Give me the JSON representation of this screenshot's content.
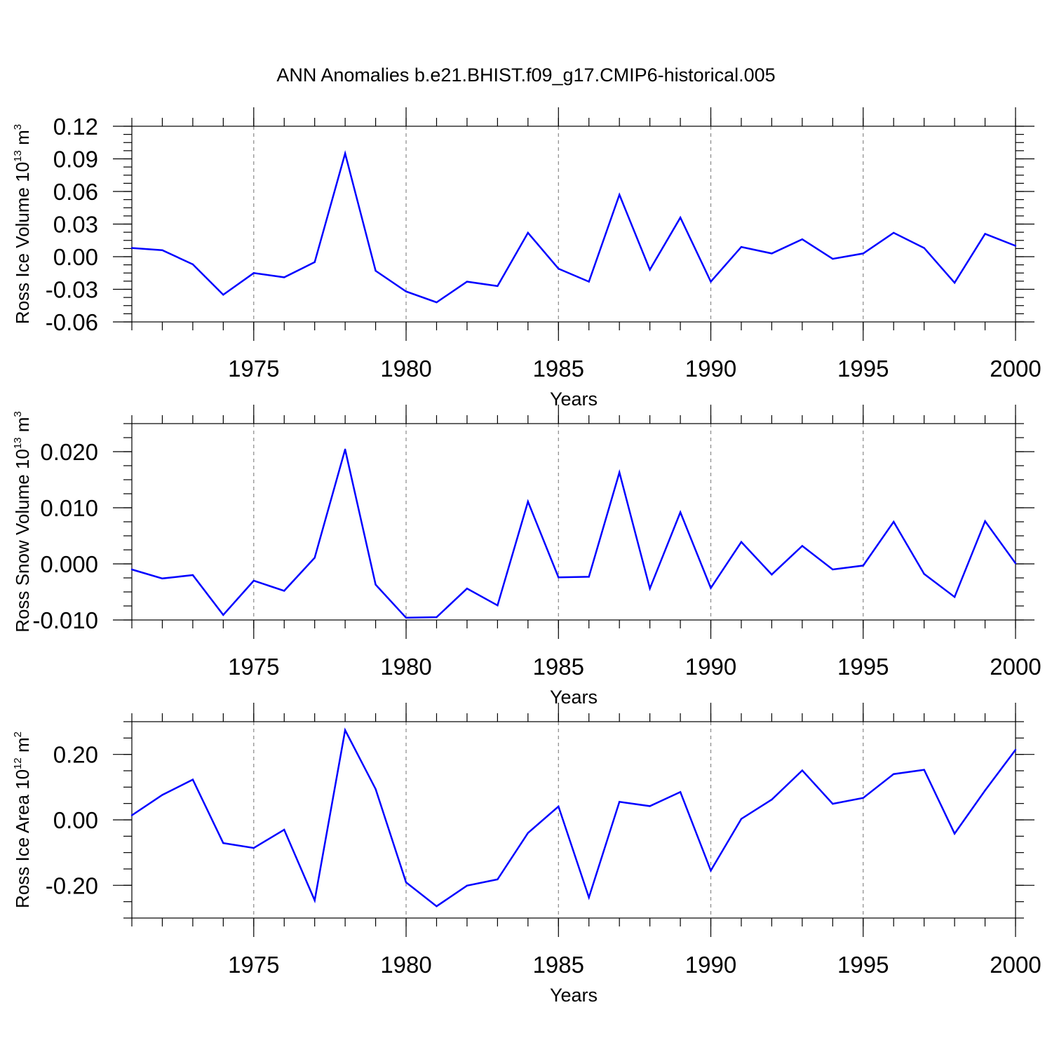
{
  "title": "ANN Anomalies b.e21.BHIST.f09_g17.CMIP6-historical.005",
  "colors": {
    "line": "#0000ff",
    "grid": "#888888",
    "axis": "#000000"
  },
  "chart_data": [
    {
      "type": "line",
      "name": "ross-ice-volume",
      "ylabel_parts": [
        "Ross Ice Volume 10",
        "13",
        " m",
        "3"
      ],
      "xlabel": "Years",
      "xlim": [
        1971,
        2000
      ],
      "ylim": [
        -0.06,
        0.12
      ],
      "yticks": [
        -0.06,
        -0.03,
        0.0,
        0.03,
        0.06,
        0.09,
        0.12
      ],
      "ytick_labels": [
        "-0.06",
        "-0.03",
        "0.00",
        "0.03",
        "0.06",
        "0.09",
        "0.12"
      ],
      "xticks": [
        1975,
        1980,
        1985,
        1990,
        1995,
        2000
      ],
      "xtick_labels": [
        "1975",
        "1980",
        "1985",
        "1990",
        "1995",
        "2000"
      ],
      "x": [
        1971,
        1972,
        1973,
        1974,
        1975,
        1976,
        1977,
        1978,
        1979,
        1980,
        1981,
        1982,
        1983,
        1984,
        1985,
        1986,
        1987,
        1988,
        1989,
        1990,
        1991,
        1992,
        1993,
        1994,
        1995,
        1996,
        1997,
        1998,
        1999,
        2000
      ],
      "values": [
        0.008,
        0.006,
        -0.007,
        -0.035,
        -0.015,
        -0.019,
        -0.005,
        0.095,
        -0.013,
        -0.032,
        -0.042,
        -0.023,
        -0.027,
        0.022,
        -0.011,
        -0.023,
        0.057,
        -0.012,
        0.036,
        -0.023,
        0.009,
        0.003,
        0.016,
        -0.002,
        0.003,
        0.022,
        0.008,
        -0.024,
        0.021,
        0.01
      ]
    },
    {
      "type": "line",
      "name": "ross-snow-volume",
      "ylabel_parts": [
        "Ross Snow Volume 10",
        "13",
        " m",
        "3"
      ],
      "xlabel": "Years",
      "xlim": [
        1971,
        2000
      ],
      "ylim": [
        -0.01,
        0.025
      ],
      "yticks": [
        -0.01,
        0.0,
        0.01,
        0.02
      ],
      "ytick_labels": [
        "-0.010",
        "0.000",
        "0.010",
        "0.020"
      ],
      "xticks": [
        1975,
        1980,
        1985,
        1990,
        1995,
        2000
      ],
      "xtick_labels": [
        "1975",
        "1980",
        "1985",
        "1990",
        "1995",
        "2000"
      ],
      "x": [
        1971,
        1972,
        1973,
        1974,
        1975,
        1976,
        1977,
        1978,
        1979,
        1980,
        1981,
        1982,
        1983,
        1984,
        1985,
        1986,
        1987,
        1988,
        1989,
        1990,
        1991,
        1992,
        1993,
        1994,
        1995,
        1996,
        1997,
        1998,
        1999,
        2000
      ],
      "values": [
        -0.001,
        -0.0026,
        -0.002,
        -0.0091,
        -0.003,
        -0.0048,
        0.0011,
        0.0204,
        -0.0037,
        -0.0096,
        -0.0095,
        -0.0044,
        -0.0074,
        0.0111,
        -0.0024,
        -0.0023,
        0.0163,
        -0.0044,
        0.0092,
        -0.0043,
        0.0039,
        -0.0019,
        0.0032,
        -0.001,
        -0.0003,
        0.0075,
        -0.0018,
        -0.0059,
        0.0076,
        0.0001
      ]
    },
    {
      "type": "line",
      "name": "ross-ice-area",
      "ylabel_parts": [
        "Ross Ice Area 10",
        "12",
        " m",
        "2"
      ],
      "xlabel": "Years",
      "xlim": [
        1971,
        2000
      ],
      "ylim": [
        -0.3,
        0.3
      ],
      "yticks": [
        -0.2,
        0.0,
        0.2
      ],
      "ytick_labels": [
        "-0.20",
        "0.00",
        "0.20"
      ],
      "xticks": [
        1975,
        1980,
        1985,
        1990,
        1995,
        2000
      ],
      "xtick_labels": [
        "1975",
        "1980",
        "1985",
        "1990",
        "1995",
        "2000"
      ],
      "x": [
        1971,
        1972,
        1973,
        1974,
        1975,
        1976,
        1977,
        1978,
        1979,
        1980,
        1981,
        1982,
        1983,
        1984,
        1985,
        1986,
        1987,
        1988,
        1989,
        1990,
        1991,
        1992,
        1993,
        1994,
        1995,
        1996,
        1997,
        1998,
        1999,
        2000
      ],
      "values": [
        0.014,
        0.076,
        0.123,
        -0.071,
        -0.086,
        -0.03,
        -0.246,
        0.274,
        0.094,
        -0.191,
        -0.264,
        -0.201,
        -0.182,
        -0.04,
        0.041,
        -0.237,
        0.055,
        0.042,
        0.085,
        -0.155,
        0.003,
        0.062,
        0.151,
        0.049,
        0.067,
        0.14,
        0.153,
        -0.042,
        0.09,
        0.214
      ]
    }
  ]
}
